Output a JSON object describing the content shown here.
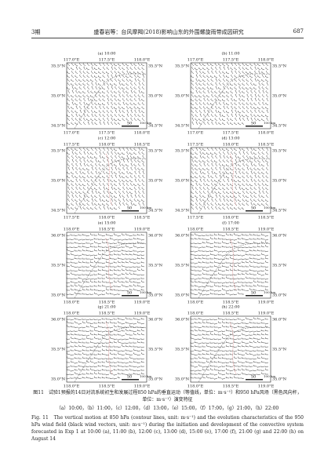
{
  "header": {
    "issue": "3期",
    "title": "盛春岩等：台风摩羯(2018)影响山东的外围螺旋雨带成因研究",
    "page": "687"
  },
  "panels": [
    {
      "label": "(a) 10:00",
      "top_ticks": [
        "117.0°E",
        "117.5°E",
        "118.0°E"
      ],
      "bottom_ticks": [
        "117.0°E",
        "117.5°E",
        "118.0°E"
      ],
      "left_ticks": [
        "35.5°N",
        "35.0°N",
        "34.5°N"
      ],
      "right_ticks": [
        "35.5°N",
        "35.0°N",
        "34.5°N"
      ],
      "scale": [
        "50",
        "100 km"
      ]
    },
    {
      "label": "(b) 11:00",
      "top_ticks": [
        "117.0°E",
        "117.5°E",
        "118.0°E"
      ],
      "bottom_ticks": [
        "117.0°E",
        "117.5°E",
        "118.0°E"
      ],
      "left_ticks": [
        "35.5°N",
        "35.0°N",
        "34.5°N"
      ],
      "right_ticks": [
        "35.5°N",
        "35.0°N",
        "34.5°N"
      ],
      "scale": [
        "50",
        "100 km"
      ]
    },
    {
      "label": "(c) 12:00",
      "top_ticks": [
        "117.5°E",
        "118.0°E",
        "118.5°E"
      ],
      "bottom_ticks": [
        "117.5°E",
        "118.0°E",
        "118.5°E"
      ],
      "left_ticks": [
        "35.5°N",
        "35.0°N",
        "34.5°N"
      ],
      "right_ticks": [
        "35.5°N",
        "35.0°N",
        "34.5°N"
      ],
      "scale": [
        "50",
        "100 km"
      ]
    },
    {
      "label": "(d) 13:00",
      "top_ticks": [
        "117.5°E",
        "118.0°E",
        "118.5°E"
      ],
      "bottom_ticks": [
        "117.5°E",
        "118.0°E",
        "118.5°E"
      ],
      "left_ticks": [
        "35.5°N",
        "35.0°N",
        "34.5°N"
      ],
      "right_ticks": [
        "35.5°N",
        "35.0°N",
        "34.5°N"
      ],
      "scale": [
        "50",
        "100 km"
      ]
    },
    {
      "label": "(e) 15:00",
      "top_ticks": [
        "118.0°E",
        "118.5°E",
        "119.0°E"
      ],
      "bottom_ticks": [
        "118.0°E",
        "118.5°E",
        "119.0°E"
      ],
      "left_ticks": [
        "36.0°N",
        "35.5°N",
        "35.0°N"
      ],
      "right_ticks": [
        "36.0°N",
        "35.5°N",
        "35.0°N"
      ],
      "scale": [
        "50",
        "100 km"
      ]
    },
    {
      "label": "(f) 17:00",
      "top_ticks": [
        "118.0°E",
        "118.5°E",
        "119.0°E"
      ],
      "bottom_ticks": [
        "118.0°E",
        "118.5°E",
        "119.0°E"
      ],
      "left_ticks": [
        "36.0°N",
        "35.5°N",
        "35.0°N"
      ],
      "right_ticks": [
        "36.0°N",
        "35.5°N",
        "35.0°N"
      ],
      "scale": [
        "50",
        "100 km"
      ]
    },
    {
      "label": "(g) 21:00",
      "top_ticks": [
        "118.0°E",
        "118.5°E",
        "119.0°E"
      ],
      "bottom_ticks": [
        "118.0°E",
        "118.5°E",
        "119.0°E"
      ],
      "left_ticks": [
        "36.0°N",
        "35.5°N",
        "35.0°N"
      ],
      "right_ticks": [
        "36.0°N",
        "35.5°N",
        "35.0°N"
      ],
      "scale": [
        "50",
        "100 km"
      ]
    },
    {
      "label": "(h) 22:00",
      "top_ticks": [
        "118.0°E",
        "118.5°E",
        "119.0°E"
      ],
      "bottom_ticks": [
        "118.0°E",
        "118.5°E",
        "119.0°E"
      ],
      "left_ticks": [
        "36.0°N",
        "35.5°N",
        "35.0°N"
      ],
      "right_ticks": [
        "36.0°N",
        "35.5°N",
        "35.0°N"
      ],
      "scale": [
        "50",
        "100 km"
      ]
    }
  ],
  "caption": {
    "zh": "图11　试验1预报的14日对流系统初生和发展过程850 hPa的垂直运动（等值线，单位：m·s⁻¹）和950 hPa风场（黑色风向杆，单位：m·s⁻¹）演变特征",
    "zh_panels": "（a）10:00，（b）11:00，（c）12:00，（d）13:00，（e）15:00，（f）17:00，（g）21:00，（h）22:00",
    "en": "Fig. 11　The vertical motion at 850 hPa (contour lines, unit: m·s⁻¹) and the evolution characteristics of the 950 hPa wind field (black wind vectors, unit: m·s⁻¹) during the initiation and development of the convective system forecasted in Exp 1 at 10:00 (a), 11:00 (b), 12:00 (c), 13:00 (d), 15:00 (e), 17:00 (f), 21:00 (g) and 22:00 (h) on August 14"
  }
}
